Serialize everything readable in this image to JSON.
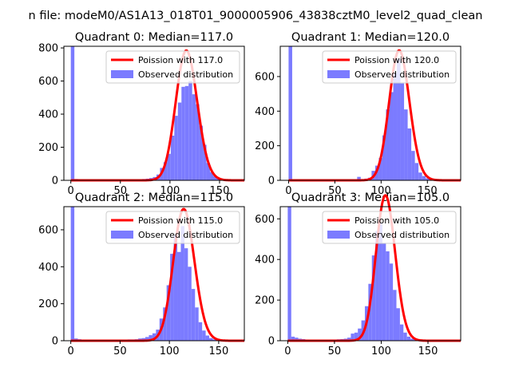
{
  "suptitle": "n file: modeM0/AS1A13_018T01_9000005906_43838cztM0_level2_quad_clean",
  "colors": {
    "bar": "#7b7bff",
    "poisson": "#ff0000",
    "axis": "#000000"
  },
  "chart_data": [
    {
      "type": "bar",
      "title": "Quadrant 0: Median=117.0",
      "xlim": [
        -7,
        175
      ],
      "ylim": [
        0,
        810
      ],
      "xticks": [
        0,
        50,
        100,
        150
      ],
      "yticks": [
        0,
        200,
        400,
        600,
        800
      ],
      "bin_width": 3.6,
      "x": [
        0,
        3.6,
        7.2,
        10.8,
        14.4,
        18,
        21.6,
        25.2,
        28.8,
        32.4,
        36,
        39.6,
        43.2,
        46.8,
        50.4,
        54,
        57.6,
        61.2,
        64.8,
        68.4,
        72,
        75.6,
        79.2,
        82.8,
        86.4,
        90,
        93.6,
        97.2,
        100.8,
        104.4,
        108,
        111.6,
        115.2,
        118.8,
        122.4,
        126,
        129.6,
        133.2,
        136.8,
        140.4,
        144,
        147.6,
        151.2,
        154.8,
        158.4,
        162
      ],
      "counts": [
        810,
        8,
        5,
        4,
        3,
        3,
        3,
        3,
        3,
        3,
        3,
        3,
        3,
        3,
        4,
        4,
        4,
        5,
        5,
        6,
        8,
        10,
        14,
        20,
        35,
        75,
        110,
        160,
        270,
        390,
        470,
        565,
        570,
        600,
        520,
        460,
        330,
        215,
        105,
        50,
        24,
        12,
        6,
        4,
        2,
        1
      ],
      "poisson": {
        "label": "Poission with 117.0",
        "mean": 117.0
      },
      "legend": [
        "Poission with 117.0",
        "Observed distribution"
      ],
      "legend_loc": "upper right"
    },
    {
      "type": "bar",
      "title": "Quadrant 1: Median=120.0",
      "xlim": [
        -9,
        186
      ],
      "ylim": [
        0,
        775
      ],
      "xticks": [
        0,
        50,
        100,
        150
      ],
      "yticks": [
        0,
        200,
        400,
        600
      ],
      "bin_width": 3.9,
      "x": [
        0,
        3.9,
        7.8,
        11.7,
        15.6,
        19.5,
        23.4,
        27.3,
        31.2,
        35.1,
        39,
        42.9,
        46.8,
        50.7,
        54.6,
        58.5,
        62.4,
        66.3,
        70.2,
        74.1,
        78,
        81.9,
        85.8,
        89.7,
        93.6,
        97.5,
        101.4,
        105.3,
        109.2,
        113.1,
        117,
        120.9,
        124.8,
        128.7,
        132.6,
        136.5,
        140.4,
        144.3,
        148.2,
        152.1,
        156,
        159.9,
        163.8,
        167.7,
        171.6
      ],
      "counts": [
        775,
        5,
        4,
        3,
        3,
        3,
        3,
        3,
        3,
        3,
        3,
        3,
        3,
        3,
        3,
        3,
        3,
        3,
        4,
        20,
        5,
        10,
        15,
        55,
        85,
        130,
        260,
        410,
        510,
        620,
        700,
        560,
        410,
        300,
        170,
        100,
        45,
        25,
        12,
        6,
        3,
        2,
        1,
        1,
        1
      ],
      "poisson": {
        "label": "Poission with 120.0",
        "mean": 120.0
      },
      "legend": [
        "Poission with 120.0",
        "Observed distribution"
      ],
      "legend_loc": "upper right"
    },
    {
      "type": "bar",
      "title": "Quadrant 2: Median=115.0",
      "xlim": [
        -7,
        176
      ],
      "ylim": [
        0,
        725
      ],
      "xticks": [
        0,
        50,
        100,
        150
      ],
      "yticks": [
        0,
        200,
        400,
        600
      ],
      "bin_width": 3.6,
      "x": [
        0,
        3.6,
        7.2,
        10.8,
        14.4,
        18,
        21.6,
        25.2,
        28.8,
        32.4,
        36,
        39.6,
        43.2,
        46.8,
        50.4,
        54,
        57.6,
        61.2,
        64.8,
        68.4,
        72,
        75.6,
        79.2,
        82.8,
        86.4,
        90,
        93.6,
        97.2,
        100.8,
        104.4,
        108,
        111.6,
        115.2,
        118.8,
        122.4,
        126,
        129.6,
        133.2,
        136.8,
        140.4,
        144,
        147.6,
        151.2,
        154.8,
        158.4,
        162
      ],
      "counts": [
        725,
        12,
        8,
        6,
        5,
        4,
        4,
        4,
        4,
        4,
        5,
        5,
        5,
        5,
        6,
        6,
        7,
        7,
        8,
        12,
        14,
        20,
        30,
        40,
        60,
        120,
        180,
        300,
        470,
        570,
        480,
        620,
        500,
        400,
        280,
        180,
        100,
        55,
        28,
        14,
        7,
        4,
        3,
        2,
        1,
        1
      ],
      "poisson": {
        "label": "Poission with 115.0",
        "mean": 115.0
      },
      "legend": [
        "Poission with 115.0",
        "Observed distribution"
      ],
      "legend_loc": "upper right"
    },
    {
      "type": "bar",
      "title": "Quadrant 3: Median=105.0",
      "xlim": [
        -8,
        185
      ],
      "ylim": [
        0,
        660
      ],
      "xticks": [
        0,
        50,
        100,
        150
      ],
      "yticks": [
        0,
        200,
        400,
        600
      ],
      "bin_width": 3.75,
      "x": [
        0,
        3.75,
        7.5,
        11.25,
        15,
        18.75,
        22.5,
        26.25,
        30,
        33.75,
        37.5,
        41.25,
        45,
        48.75,
        52.5,
        56.25,
        60,
        63.75,
        67.5,
        71.25,
        75,
        78.75,
        82.5,
        86.25,
        90,
        93.75,
        97.5,
        101.25,
        105,
        108.75,
        112.5,
        116.25,
        120,
        123.75,
        127.5,
        131.25,
        135,
        138.75,
        142.5,
        146.25,
        150,
        153.75,
        157.5,
        161.25,
        165,
        168.75
      ],
      "counts": [
        660,
        20,
        15,
        10,
        8,
        6,
        5,
        5,
        5,
        5,
        5,
        5,
        6,
        6,
        7,
        8,
        10,
        15,
        35,
        40,
        60,
        100,
        170,
        280,
        420,
        540,
        580,
        480,
        440,
        380,
        250,
        160,
        80,
        40,
        20,
        10,
        5,
        3,
        2,
        1,
        1,
        1,
        1,
        1,
        1,
        1
      ],
      "poisson": {
        "label": "Poission with 105.0",
        "mean": 105.0
      },
      "legend": [
        "Poission with 105.0",
        "Observed distribution"
      ],
      "legend_loc": "upper right"
    }
  ]
}
